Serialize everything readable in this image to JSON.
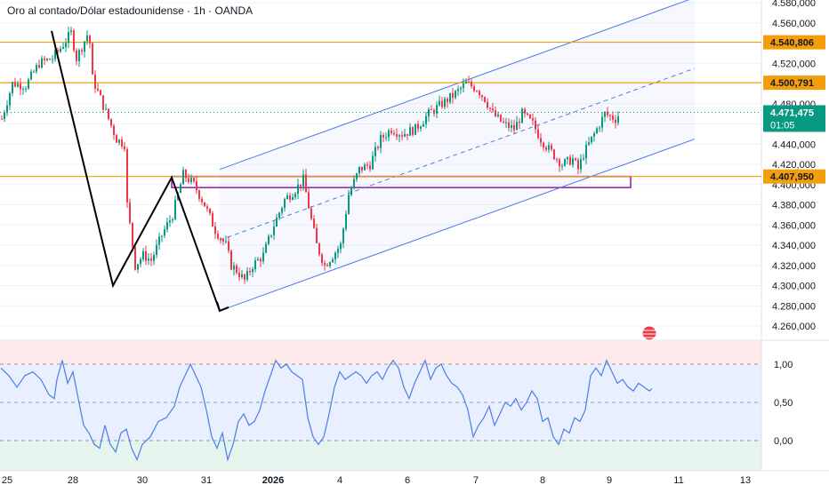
{
  "header": {
    "title": "Oro al contado/Dólar estadounidense · 1h · OANDA"
  },
  "colors": {
    "up": "#089981",
    "down": "#f23645",
    "level_line": "#f59e0b",
    "level_label_bg": "#f59e0b",
    "channel": "#4a7ee8",
    "zone": "#9c27b0",
    "osc_line": "#4a7ee8",
    "price_tag": "#089981"
  },
  "chart_data": [
    {
      "type": "candlestick",
      "symbol": "XAUUSD",
      "timeframe": "1h",
      "y_axis_ticks": [
        "4.580,000",
        "4.560,000",
        "4.520,000",
        "4.480,000",
        "4.460,000",
        "4.440,000",
        "4.420,000",
        "4.400,000",
        "4.380,000",
        "4.360,000",
        "4.340,000",
        "4.320,000",
        "4.300,000",
        "4.280,000",
        "4.260,000"
      ],
      "ylim": [
        4250,
        4585
      ],
      "x_axis_ticks": [
        "25",
        "28",
        "30",
        "31",
        "2026",
        "4",
        "6",
        "7",
        "8",
        "9",
        "11",
        "13"
      ],
      "levels": [
        {
          "value": 4540.806,
          "label": "4.540,806"
        },
        {
          "value": 4500.791,
          "label": "4.500,791"
        },
        {
          "value": 4407.95,
          "label": "4.407,950"
        }
      ],
      "last_price": {
        "value": 4471.475,
        "label": "4.471,475",
        "countdown": "01:05"
      },
      "close_path": [
        [
          0,
          4465
        ],
        [
          4,
          4500
        ],
        [
          9,
          4498
        ],
        [
          14,
          4520
        ],
        [
          19,
          4525
        ],
        [
          22,
          4535
        ],
        [
          26,
          4550
        ],
        [
          28,
          4525
        ],
        [
          32,
          4548
        ],
        [
          33,
          4540
        ],
        [
          34,
          4505
        ],
        [
          40,
          4465
        ],
        [
          43,
          4445
        ],
        [
          46,
          4440
        ],
        [
          47,
          4380
        ],
        [
          50,
          4320
        ],
        [
          53,
          4330
        ],
        [
          56,
          4325
        ],
        [
          60,
          4350
        ],
        [
          64,
          4370
        ],
        [
          68,
          4410
        ],
        [
          72,
          4400
        ],
        [
          76,
          4380
        ],
        [
          80,
          4355
        ],
        [
          84,
          4340
        ],
        [
          86,
          4320
        ],
        [
          88,
          4315
        ],
        [
          91,
          4305
        ],
        [
          94,
          4320
        ],
        [
          98,
          4330
        ],
        [
          102,
          4360
        ],
        [
          106,
          4385
        ],
        [
          110,
          4395
        ],
        [
          113,
          4405
        ],
        [
          116,
          4365
        ],
        [
          118,
          4340
        ],
        [
          121,
          4320
        ],
        [
          124,
          4330
        ],
        [
          127,
          4340
        ],
        [
          130,
          4390
        ],
        [
          134,
          4415
        ],
        [
          138,
          4420
        ],
        [
          142,
          4445
        ],
        [
          146,
          4455
        ],
        [
          150,
          4450
        ],
        [
          155,
          4455
        ],
        [
          160,
          4470
        ],
        [
          165,
          4480
        ],
        [
          170,
          4490
        ],
        [
          174,
          4500
        ],
        [
          178,
          4495
        ],
        [
          181,
          4485
        ],
        [
          184,
          4470
        ],
        [
          188,
          4460
        ],
        [
          192,
          4455
        ],
        [
          195,
          4470
        ],
        [
          199,
          4460
        ],
        [
          202,
          4445
        ],
        [
          205,
          4435
        ],
        [
          210,
          4420
        ],
        [
          214,
          4425
        ],
        [
          216,
          4415
        ],
        [
          218,
          4430
        ],
        [
          222,
          4450
        ],
        [
          226,
          4470
        ],
        [
          230,
          4465
        ],
        [
          232,
          4472
        ]
      ],
      "osc_path": [
        [
          0,
          0.95
        ],
        [
          3,
          0.85
        ],
        [
          6,
          0.7
        ],
        [
          9,
          0.85
        ],
        [
          12,
          0.9
        ],
        [
          15,
          0.8
        ],
        [
          18,
          0.6
        ],
        [
          20,
          0.55
        ],
        [
          21,
          0.8
        ],
        [
          23,
          1.05
        ],
        [
          25,
          0.75
        ],
        [
          27,
          0.9
        ],
        [
          29,
          0.55
        ],
        [
          31,
          0.2
        ],
        [
          33,
          0.1
        ],
        [
          35,
          -0.05
        ],
        [
          37,
          -0.1
        ],
        [
          39,
          0.2
        ],
        [
          41,
          -0.05
        ],
        [
          43,
          -0.15
        ],
        [
          45,
          0.1
        ],
        [
          47,
          0.15
        ],
        [
          49,
          -0.1
        ],
        [
          51,
          -0.25
        ],
        [
          53,
          -0.05
        ],
        [
          56,
          0.05
        ],
        [
          59,
          0.25
        ],
        [
          62,
          0.3
        ],
        [
          65,
          0.45
        ],
        [
          67,
          0.7
        ],
        [
          69,
          0.85
        ],
        [
          71,
          1.0
        ],
        [
          73,
          0.85
        ],
        [
          75,
          0.7
        ],
        [
          77,
          0.4
        ],
        [
          79,
          0.05
        ],
        [
          81,
          -0.1
        ],
        [
          83,
          0.1
        ],
        [
          85,
          -0.25
        ],
        [
          87,
          -0.05
        ],
        [
          89,
          0.25
        ],
        [
          91,
          0.35
        ],
        [
          93,
          0.2
        ],
        [
          95,
          0.25
        ],
        [
          97,
          0.4
        ],
        [
          99,
          0.65
        ],
        [
          101,
          0.85
        ],
        [
          103,
          1.05
        ],
        [
          105,
          0.95
        ],
        [
          107,
          1.0
        ],
        [
          109,
          0.9
        ],
        [
          111,
          0.85
        ],
        [
          113,
          0.8
        ],
        [
          115,
          0.3
        ],
        [
          117,
          0.05
        ],
        [
          119,
          -0.05
        ],
        [
          121,
          0.05
        ],
        [
          123,
          0.35
        ],
        [
          125,
          0.7
        ],
        [
          127,
          0.9
        ],
        [
          129,
          0.8
        ],
        [
          131,
          0.85
        ],
        [
          133,
          0.9
        ],
        [
          135,
          0.85
        ],
        [
          137,
          0.75
        ],
        [
          139,
          0.85
        ],
        [
          141,
          0.9
        ],
        [
          143,
          0.8
        ],
        [
          145,
          0.95
        ],
        [
          147,
          1.05
        ],
        [
          149,
          0.95
        ],
        [
          151,
          0.7
        ],
        [
          153,
          0.55
        ],
        [
          155,
          0.75
        ],
        [
          157,
          0.9
        ],
        [
          159,
          1.05
        ],
        [
          161,
          0.8
        ],
        [
          163,
          0.95
        ],
        [
          165,
          1.0
        ],
        [
          167,
          0.85
        ],
        [
          169,
          0.75
        ],
        [
          171,
          0.7
        ],
        [
          173,
          0.6
        ],
        [
          175,
          0.4
        ],
        [
          177,
          0.05
        ],
        [
          179,
          0.2
        ],
        [
          181,
          0.3
        ],
        [
          183,
          0.45
        ],
        [
          185,
          0.2
        ],
        [
          187,
          0.35
        ],
        [
          189,
          0.5
        ],
        [
          191,
          0.45
        ],
        [
          193,
          0.55
        ],
        [
          195,
          0.4
        ],
        [
          197,
          0.5
        ],
        [
          199,
          0.65
        ],
        [
          201,
          0.55
        ],
        [
          203,
          0.25
        ],
        [
          205,
          0.3
        ],
        [
          207,
          0.05
        ],
        [
          209,
          -0.05
        ],
        [
          211,
          0.15
        ],
        [
          213,
          0.1
        ],
        [
          215,
          0.3
        ],
        [
          217,
          0.25
        ],
        [
          219,
          0.4
        ],
        [
          221,
          0.85
        ],
        [
          223,
          0.95
        ],
        [
          225,
          0.85
        ],
        [
          227,
          1.05
        ],
        [
          229,
          0.9
        ],
        [
          231,
          0.75
        ],
        [
          233,
          0.8
        ],
        [
          235,
          0.7
        ],
        [
          237,
          0.65
        ],
        [
          239,
          0.75
        ],
        [
          241,
          0.7
        ],
        [
          243,
          0.65
        ],
        [
          244,
          0.68
        ]
      ],
      "osc_axis_ticks": [
        "1,00",
        "0,50",
        "0,00"
      ],
      "osc_ylim": [
        -0.45,
        1.3
      ],
      "annotations": {
        "zigzag": [
          [
            19,
            4552
          ],
          [
            42,
            4300
          ],
          [
            64,
            4407
          ],
          [
            82,
            4275
          ]
        ],
        "channel": {
          "upper_start": [
            82,
            4415
          ],
          "upper_end": [
            260,
            4585
          ],
          "lower_start": [
            82,
            4275
          ],
          "lower_end": [
            260,
            4445
          ]
        },
        "zone": {
          "x1": 64,
          "x2": 236,
          "y_low": 4397,
          "y_high": 4408
        }
      },
      "event_marker": "calendar-flag"
    }
  ]
}
